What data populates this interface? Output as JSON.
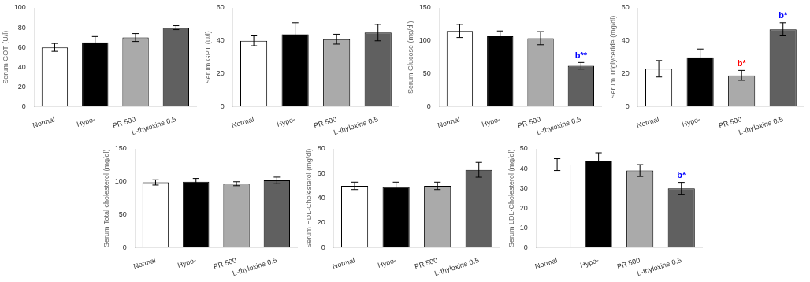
{
  "chart_data": [
    {
      "type": "bar",
      "categories": [
        "Normal",
        "Hypo-",
        "PR 500",
        "L-thyloxine 0.5"
      ],
      "colors": [
        "white",
        "black",
        "#aaaaaa",
        "#606060"
      ],
      "ylabel": "Serum GOT (U/l)",
      "ylim": [
        0,
        100
      ],
      "yticks": [
        0,
        20,
        40,
        60,
        80,
        100
      ],
      "values": [
        60,
        65,
        70,
        80
      ],
      "errors": [
        4,
        6,
        4,
        2
      ],
      "grid": false
    },
    {
      "type": "bar",
      "categories": [
        "Normal",
        "Hypo-",
        "PR 500",
        "L-thyloxine 0.5"
      ],
      "colors": [
        "white",
        "black",
        "#aaaaaa",
        "#606060"
      ],
      "ylabel": "Serum GPT (U/l)",
      "ylim": [
        0,
        60
      ],
      "yticks": [
        0,
        20,
        40,
        60
      ],
      "values": [
        40,
        44,
        41,
        45
      ],
      "errors": [
        3,
        7,
        3,
        5
      ],
      "grid": false
    },
    {
      "type": "bar",
      "categories": [
        "Normal",
        "Hypo-",
        "PR 500",
        "L-thyloxine 0.5"
      ],
      "colors": [
        "white",
        "black",
        "#aaaaaa",
        "#606060"
      ],
      "ylabel": "Serum Glucose (mg/dl)",
      "ylim": [
        0,
        150
      ],
      "yticks": [
        0,
        50,
        100,
        150
      ],
      "values": [
        115,
        107,
        104,
        62
      ],
      "errors": [
        10,
        8,
        10,
        5
      ],
      "grid": false,
      "annotations": [
        {
          "category": "L-thyloxine 0.5",
          "text": "b**",
          "color": "blue"
        }
      ]
    },
    {
      "type": "bar",
      "categories": [
        "Normal",
        "Hypo-",
        "PR 500",
        "L-thyloxine 0.5"
      ],
      "colors": [
        "white",
        "black",
        "#aaaaaa",
        "#606060"
      ],
      "ylabel": "Serum Triglyceride (mg/dl)",
      "ylim": [
        0,
        60
      ],
      "yticks": [
        0,
        20,
        40,
        60
      ],
      "values": [
        23,
        30,
        19,
        47
      ],
      "errors": [
        5,
        5,
        3,
        4
      ],
      "grid": false,
      "annotations": [
        {
          "category": "PR 500",
          "text": "b*",
          "color": "red"
        },
        {
          "category": "L-thyloxine 0.5",
          "text": "b*",
          "color": "blue"
        }
      ]
    },
    {
      "type": "bar",
      "categories": [
        "Normal",
        "Hypo-",
        "PR 500",
        "L-thyloxine 0.5"
      ],
      "colors": [
        "white",
        "black",
        "#aaaaaa",
        "#606060"
      ],
      "ylabel": "Serum Total cholesterol (mg/dl)",
      "ylim": [
        0,
        150
      ],
      "yticks": [
        0,
        50,
        100,
        150
      ],
      "values": [
        99,
        100,
        97,
        102
      ],
      "errors": [
        4,
        5,
        3,
        5
      ],
      "grid": false
    },
    {
      "type": "bar",
      "categories": [
        "Normal",
        "Hypo-",
        "PR 500",
        "L-thyloxine 0.5"
      ],
      "colors": [
        "white",
        "black",
        "#aaaaaa",
        "#606060"
      ],
      "ylabel": "Serum HDL-Cholesterol (mg/dl)",
      "ylim": [
        0,
        80
      ],
      "yticks": [
        0,
        20,
        40,
        60,
        80
      ],
      "values": [
        50,
        49,
        50,
        63
      ],
      "errors": [
        3,
        4,
        3,
        6
      ],
      "grid": false
    },
    {
      "type": "bar",
      "categories": [
        "Normal",
        "Hypo-",
        "PR 500",
        "L-thyloxine 0.5"
      ],
      "colors": [
        "white",
        "black",
        "#aaaaaa",
        "#606060"
      ],
      "ylabel": "Serum LDL-Cholesterol (mg/dl)",
      "ylim": [
        0,
        50
      ],
      "yticks": [
        0,
        10,
        20,
        30,
        40,
        50
      ],
      "values": [
        42,
        44,
        39,
        30
      ],
      "errors": [
        3,
        4,
        3,
        3
      ],
      "grid": false,
      "annotations": [
        {
          "category": "L-thyloxine 0.5",
          "text": "b*",
          "color": "blue"
        }
      ]
    }
  ]
}
